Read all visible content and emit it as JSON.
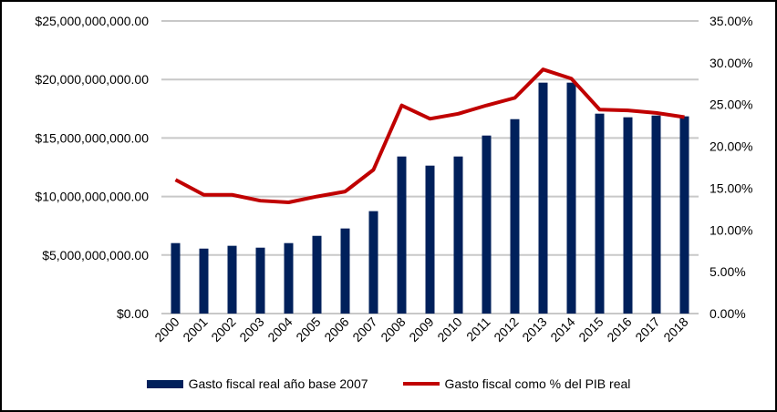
{
  "chart_data": {
    "type": "bar+line",
    "categories": [
      "2000",
      "2001",
      "2002",
      "2003",
      "2004",
      "2005",
      "2006",
      "2007",
      "2008",
      "2009",
      "2010",
      "2011",
      "2012",
      "2013",
      "2014",
      "2015",
      "2016",
      "2017",
      "2018"
    ],
    "series": [
      {
        "name": "Gasto fiscal real año base 2007",
        "type": "bar",
        "axis": "left",
        "color": "#00205B",
        "values": [
          6020000000,
          5550000000,
          5790000000,
          5630000000,
          6020000000,
          6640000000,
          7270000000,
          8750000000,
          13420000000,
          12640000000,
          13420000000,
          15210000000,
          16610000000,
          19730000000,
          19730000000,
          17080000000,
          16770000000,
          16920000000,
          16850000000
        ]
      },
      {
        "name": "Gasto fiscal  como % del PIB real",
        "type": "line",
        "axis": "right",
        "color": "#C00000",
        "values": [
          16.0,
          14.2,
          14.2,
          13.5,
          13.3,
          14.0,
          14.6,
          17.2,
          24.9,
          23.3,
          23.9,
          24.9,
          25.8,
          29.2,
          28.1,
          24.4,
          24.3,
          24.0,
          23.5
        ]
      }
    ],
    "y_left": {
      "lim": [
        0,
        25000000000
      ],
      "ticks": [
        "$0.00",
        "$5,000,000,000.00",
        "$10,000,000,000.00",
        "$15,000,000,000.00",
        "$20,000,000,000.00",
        "$25,000,000,000.00"
      ]
    },
    "y_right": {
      "lim": [
        0,
        35
      ],
      "ticks": [
        "0.00%",
        "5.00%",
        "10.00%",
        "15.00%",
        "20.00%",
        "25.00%",
        "30.00%",
        "35.00%"
      ]
    },
    "grid": true,
    "legend_position": "bottom"
  }
}
